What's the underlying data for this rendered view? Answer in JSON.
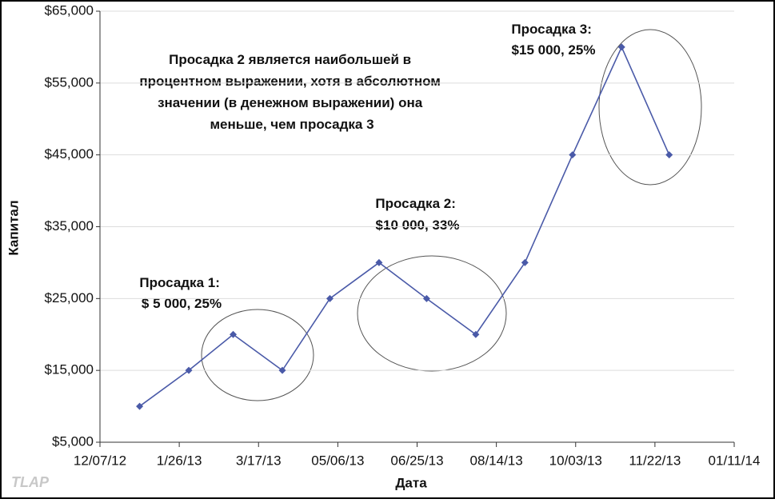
{
  "chart_data": {
    "type": "line",
    "x_label": "Дата",
    "y_label": "Капитал",
    "watermark": "TLAP",
    "x": [
      "2013-01-01",
      "2013-02-01",
      "2013-03-01",
      "2013-04-01",
      "2013-05-01",
      "2013-06-01",
      "2013-07-01",
      "2013-08-01",
      "2013-09-01",
      "2013-10-01",
      "2013-11-01",
      "2013-12-01"
    ],
    "series": [
      {
        "color": "#4a5aa8",
        "values": [
          10000,
          15000,
          20000,
          15000,
          25000,
          30000,
          25000,
          20000,
          30000,
          45000,
          60000,
          45000
        ]
      }
    ],
    "xlim": [
      "2012-12-07",
      "2014-01-11"
    ],
    "xticks": [
      {
        "value": "2012-12-07",
        "label": "12/07/12"
      },
      {
        "value": "2013-01-26",
        "label": "1/26/13"
      },
      {
        "value": "2013-03-17",
        "label": "3/17/13"
      },
      {
        "value": "2013-05-06",
        "label": "05/06/13"
      },
      {
        "value": "2013-06-25",
        "label": "06/25/13"
      },
      {
        "value": "2013-08-14",
        "label": "08/14/13"
      },
      {
        "value": "2013-10-03",
        "label": "10/03/13"
      },
      {
        "value": "2013-11-22",
        "label": "11/22/13"
      },
      {
        "value": "2014-01-11",
        "label": "01/11/14"
      }
    ],
    "ylim": [
      5000,
      65000
    ],
    "yticks": [
      {
        "value": 5000,
        "label": "$5,000"
      },
      {
        "value": 15000,
        "label": "$15,000"
      },
      {
        "value": 25000,
        "label": "$25,000"
      },
      {
        "value": 35000,
        "label": "$35,000"
      },
      {
        "value": 45000,
        "label": "$45,000"
      },
      {
        "value": 55000,
        "label": "$55,000"
      },
      {
        "value": 65000,
        "label": "$65,000"
      }
    ],
    "grid": true,
    "annotations": [
      {
        "lines": [
          "Просадка 2 является наибольшей в",
          "процентном выражении, хотя в абсолютном",
          "значении (в денежном выражении) она",
          "меньше, чем просадка 3"
        ]
      },
      {
        "lines": [
          "Просадка 1:",
          "$ 5 000, 25%"
        ]
      },
      {
        "lines": [
          "Просадка 2:",
          "$10 000, 33%"
        ]
      },
      {
        "lines": [
          "Просадка 3:",
          "$15 000, 25%"
        ]
      }
    ]
  }
}
